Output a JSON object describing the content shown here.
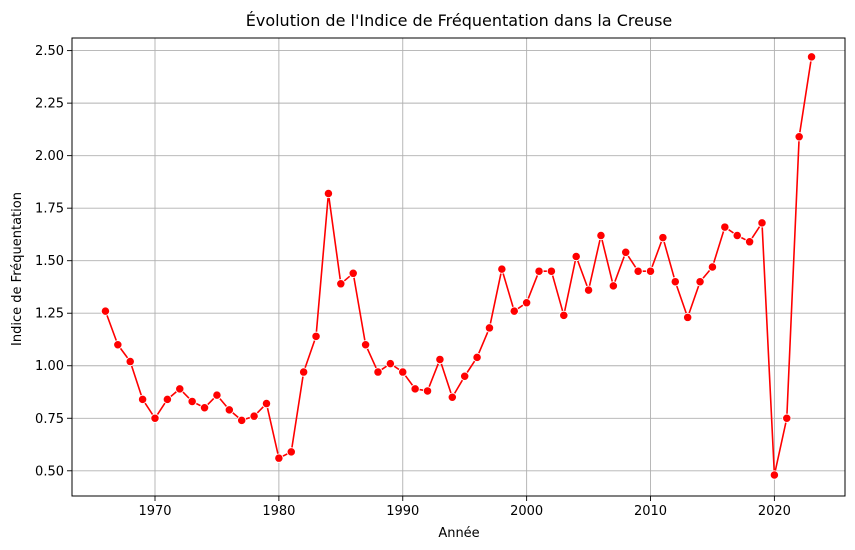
{
  "chart_data": {
    "type": "line",
    "title": "Évolution de l'Indice de Fréquentation dans la Creuse",
    "xlabel": "Année",
    "ylabel": "Indice de Fréquentation",
    "xlim": [
      1963.3,
      2025.7
    ],
    "ylim": [
      0.38,
      2.56
    ],
    "xticks": [
      1970,
      1980,
      1990,
      2000,
      2010,
      2020
    ],
    "yticks": [
      0.5,
      0.75,
      1.0,
      1.25,
      1.5,
      1.75,
      2.0,
      2.25,
      2.5
    ],
    "xtick_labels": [
      "1970",
      "1980",
      "1990",
      "2000",
      "2010",
      "2020"
    ],
    "ytick_labels": [
      "0.50",
      "0.75",
      "1.00",
      "1.25",
      "1.50",
      "1.75",
      "2.00",
      "2.25",
      "2.50"
    ],
    "grid": true,
    "line_color": "#ff0000",
    "marker_color": "#ff0000",
    "marker": "circle",
    "series": [
      {
        "x": [
          1966,
          1967,
          1968,
          1969,
          1970,
          1971,
          1972,
          1973,
          1974,
          1975,
          1976,
          1977,
          1978,
          1979,
          1980,
          1981,
          1982,
          1983,
          1984,
          1985,
          1986,
          1987,
          1988,
          1989,
          1990,
          1991,
          1992,
          1993,
          1994,
          1995,
          1996,
          1997,
          1998,
          1999,
          2000,
          2001,
          2002,
          2003,
          2004,
          2005,
          2006,
          2007,
          2008,
          2009,
          2010,
          2011,
          2012,
          2013,
          2014,
          2015,
          2016,
          2017,
          2018,
          2019,
          2020,
          2021,
          2022,
          2023
        ],
        "y": [
          1.26,
          1.1,
          1.02,
          0.84,
          0.75,
          0.84,
          0.89,
          0.83,
          0.8,
          0.86,
          0.79,
          0.74,
          0.76,
          0.82,
          0.56,
          0.59,
          0.97,
          1.14,
          1.82,
          1.39,
          1.44,
          1.1,
          0.97,
          1.01,
          0.97,
          0.89,
          0.88,
          1.03,
          0.85,
          0.95,
          1.04,
          1.18,
          1.46,
          1.26,
          1.3,
          1.45,
          1.45,
          1.24,
          1.52,
          1.36,
          1.62,
          1.38,
          1.54,
          1.45,
          1.45,
          1.61,
          1.4,
          1.23,
          1.4,
          1.47,
          1.66,
          1.62,
          1.59,
          1.68,
          0.48,
          0.75,
          2.09,
          2.47
        ]
      }
    ]
  }
}
